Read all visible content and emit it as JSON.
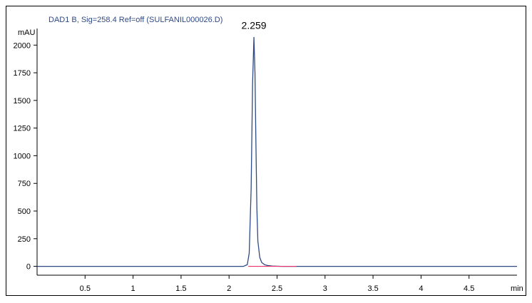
{
  "chart_data": {
    "type": "line",
    "title": "DAD1 B, Sig=258.4 Ref=off (SULFANIL000026.D)",
    "xlabel": "min",
    "ylabel": "mAU",
    "xlim": [
      0,
      5.0
    ],
    "ylim": [
      -80,
      2150
    ],
    "xticks": [
      0.5,
      1,
      1.5,
      2,
      2.5,
      3,
      3.5,
      4,
      4.5
    ],
    "xtick_labels": [
      "0.5",
      "1",
      "1.5",
      "2",
      "2.5",
      "3",
      "3.5",
      "4",
      "4.5"
    ],
    "yticks": [
      0,
      250,
      500,
      750,
      1000,
      1250,
      1500,
      1750,
      2000
    ],
    "ytick_labels": [
      "0",
      "250",
      "500",
      "750",
      "1000",
      "1250",
      "1500",
      "1750",
      "2000"
    ],
    "series": [
      {
        "color": "#2f4a86",
        "x": [
          0,
          0.5,
          1.0,
          1.5,
          2.0,
          2.15,
          2.19,
          2.21,
          2.23,
          2.245,
          2.259,
          2.27,
          2.28,
          2.29,
          2.3,
          2.32,
          2.34,
          2.37,
          2.4,
          2.45,
          2.55,
          2.7,
          3.0,
          3.5,
          4.0,
          4.5,
          5.0
        ],
        "y": [
          0,
          0,
          0,
          0,
          0,
          0,
          15,
          120,
          700,
          1650,
          2070,
          1750,
          1100,
          520,
          230,
          80,
          35,
          15,
          8,
          3,
          0,
          0,
          0,
          0,
          0,
          0,
          0
        ]
      }
    ],
    "baseline": {
      "color": "#e8336e",
      "x": [
        2.2,
        2.7
      ],
      "y": [
        0,
        0
      ]
    },
    "annotations": [
      {
        "text": "2.259",
        "x": 2.259,
        "y": 2070
      }
    ],
    "colors": {
      "title": "#2f4a86",
      "trace": "#2f4a86",
      "baseline": "#e8336e",
      "frame": "#000000"
    }
  }
}
